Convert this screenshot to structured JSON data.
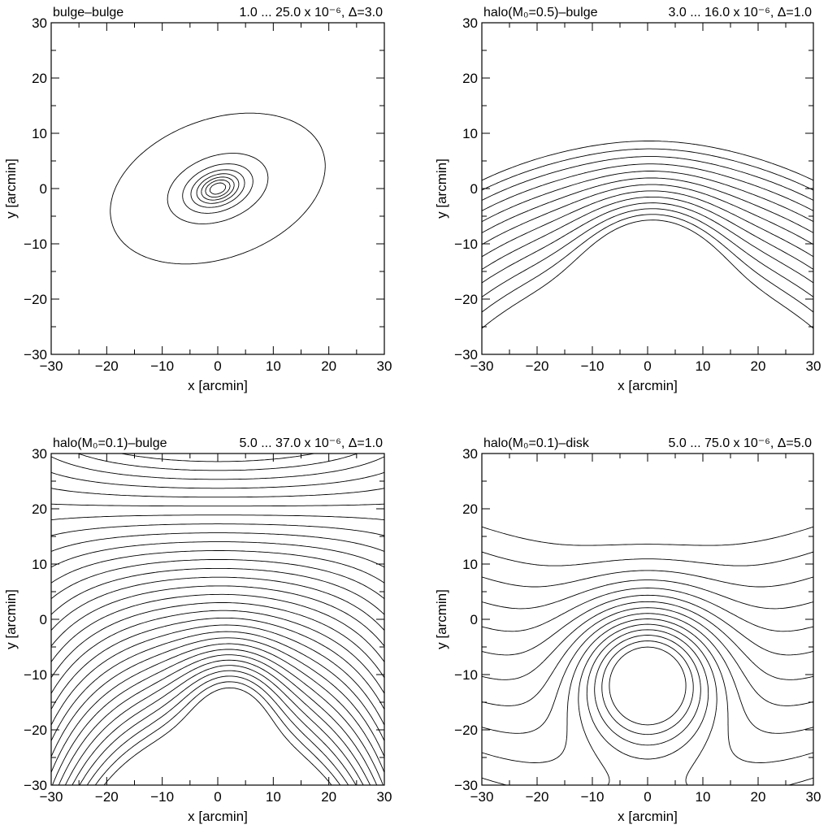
{
  "chart_data": [
    {
      "type": "contour",
      "title_left": "bulge–bulge",
      "title_right": "1.0 ... 25.0 x 10⁻⁶, Δ=3.0",
      "xlabel": "x [arcmin]",
      "ylabel": "y [arcmin]",
      "xlim": [
        -30,
        30
      ],
      "ylim": [
        -30,
        30
      ],
      "xticks": [
        "−30",
        "−20",
        "−10",
        "0",
        "10",
        "20",
        "30"
      ],
      "yticks": [
        "−30",
        "−20",
        "−10",
        "0",
        "10",
        "20",
        "30"
      ],
      "contour_range": [
        1.0,
        25.0
      ],
      "contour_step": 3.0,
      "dashed_level_marked": true
    },
    {
      "type": "contour",
      "title_left": "halo(M₀=0.5)–bulge",
      "title_right": "3.0 ... 16.0 x 10⁻⁶, Δ=1.0",
      "xlabel": "x [arcmin]",
      "ylabel": "y [arcmin]",
      "xlim": [
        -30,
        30
      ],
      "ylim": [
        -30,
        30
      ],
      "xticks": [
        "−30",
        "−20",
        "−10",
        "0",
        "10",
        "20",
        "30"
      ],
      "yticks": [
        "−30",
        "−20",
        "−10",
        "0",
        "10",
        "20",
        "30"
      ],
      "contour_range": [
        3.0,
        16.0
      ],
      "contour_step": 1.0,
      "dashed_level_marked": true
    },
    {
      "type": "contour",
      "title_left": "halo(M₀=0.1)–bulge",
      "title_right": "5.0 ... 37.0 x 10⁻⁶, Δ=1.0",
      "xlabel": "x [arcmin]",
      "ylabel": "y [arcmin]",
      "xlim": [
        -30,
        30
      ],
      "ylim": [
        -30,
        30
      ],
      "xticks": [
        "−30",
        "−20",
        "−10",
        "0",
        "10",
        "20",
        "30"
      ],
      "yticks": [
        "−30",
        "−20",
        "−10",
        "0",
        "10",
        "20",
        "30"
      ],
      "contour_range": [
        5.0,
        37.0
      ],
      "contour_step": 1.0,
      "dashed_level_marked": true
    },
    {
      "type": "contour",
      "title_left": "halo(M₀=0.1)–disk",
      "title_right": "5.0 ... 75.0 x 10⁻⁶, Δ=5.0",
      "xlabel": "x [arcmin]",
      "ylabel": "y [arcmin]",
      "xlim": [
        -30,
        30
      ],
      "ylim": [
        -30,
        30
      ],
      "xticks": [
        "−30",
        "−20",
        "−10",
        "0",
        "10",
        "20",
        "30"
      ],
      "yticks": [
        "−30",
        "−20",
        "−10",
        "0",
        "10",
        "20",
        "30"
      ],
      "contour_range": [
        5.0,
        75.0
      ],
      "contour_step": 5.0,
      "dashed_level_marked": true
    }
  ]
}
